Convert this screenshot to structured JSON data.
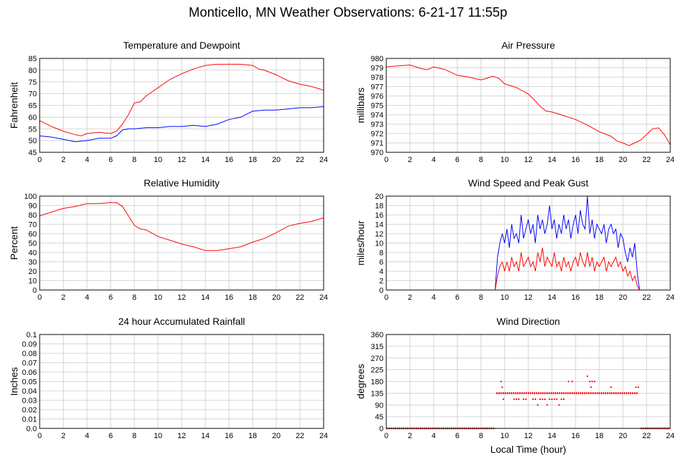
{
  "page": {
    "title": "Monticello, MN Weather Observations: 6-21-17 11:55p"
  },
  "chart_data": [
    {
      "type": "line",
      "title": "Temperature and Dewpoint",
      "xlabel": "",
      "ylabel": "Fahrenheit",
      "xlim": [
        0,
        24
      ],
      "ylim": [
        45,
        85
      ],
      "x_ticks": [
        0,
        2,
        4,
        6,
        8,
        10,
        12,
        14,
        16,
        18,
        20,
        22,
        24
      ],
      "y_ticks": [
        45,
        50,
        55,
        60,
        65,
        70,
        75,
        80,
        85
      ],
      "grid": true,
      "series": [
        {
          "color": "#ff0000",
          "x": [
            0,
            1,
            2,
            3,
            3.5,
            4,
            5,
            6,
            6.5,
            7,
            7.5,
            8,
            8.5,
            9,
            10,
            11,
            12,
            13,
            14,
            15,
            16,
            17,
            18,
            18.5,
            19,
            20,
            21,
            22,
            23,
            24
          ],
          "y": [
            58.5,
            56,
            54,
            52.5,
            52,
            53,
            53.5,
            53,
            54,
            57,
            61,
            66,
            66.5,
            69,
            72.5,
            76,
            78.5,
            80.5,
            82,
            82.5,
            82.5,
            82.5,
            82,
            80.5,
            80,
            78,
            75.5,
            74,
            73,
            71.5
          ]
        },
        {
          "color": "#0000ff",
          "x": [
            0,
            1,
            2,
            3,
            4,
            5,
            6,
            6.5,
            7,
            7.5,
            8,
            9,
            10,
            11,
            12,
            13,
            14,
            15,
            16,
            17,
            18,
            19,
            20,
            21,
            22,
            23,
            24
          ],
          "y": [
            52,
            51.5,
            50.5,
            49.5,
            50,
            51,
            51,
            52,
            54.5,
            55,
            55,
            55.5,
            55.5,
            56,
            56,
            56.5,
            56,
            57,
            59,
            60,
            62.5,
            63,
            63,
            63.5,
            64,
            64,
            64.5
          ]
        }
      ]
    },
    {
      "type": "line",
      "title": "Air Pressure",
      "xlabel": "",
      "ylabel": "millibars",
      "xlim": [
        0,
        24
      ],
      "ylim": [
        970,
        980
      ],
      "x_ticks": [
        0,
        2,
        4,
        6,
        8,
        10,
        12,
        14,
        16,
        18,
        20,
        22,
        24
      ],
      "y_ticks": [
        970,
        971,
        972,
        973,
        974,
        975,
        976,
        977,
        978,
        979,
        980
      ],
      "grid": true,
      "series": [
        {
          "color": "#ff0000",
          "x": [
            0,
            1,
            2,
            3,
            3.5,
            4,
            5,
            6,
            7,
            8,
            8.5,
            9,
            9.5,
            10,
            11,
            12,
            12.5,
            13,
            13.5,
            14,
            15,
            16,
            17,
            18,
            19,
            19.5,
            20,
            20.5,
            21,
            21.5,
            22,
            22.5,
            23,
            23.5,
            24
          ],
          "y": [
            979.1,
            979.2,
            979.3,
            978.9,
            978.8,
            979.1,
            978.8,
            978.2,
            978.0,
            977.7,
            977.9,
            978.1,
            977.9,
            977.3,
            976.9,
            976.2,
            975.6,
            974.9,
            974.4,
            974.3,
            973.9,
            973.5,
            972.9,
            972.2,
            971.7,
            971.2,
            971.0,
            970.7,
            971.0,
            971.3,
            971.9,
            972.5,
            972.6,
            971.9,
            970.8
          ]
        }
      ]
    },
    {
      "type": "line",
      "title": "Relative Humidity",
      "xlabel": "",
      "ylabel": "Percent",
      "xlim": [
        0,
        24
      ],
      "ylim": [
        0,
        100
      ],
      "x_ticks": [
        0,
        2,
        4,
        6,
        8,
        10,
        12,
        14,
        16,
        18,
        20,
        22,
        24
      ],
      "y_ticks": [
        0,
        10,
        20,
        30,
        40,
        50,
        60,
        70,
        80,
        90,
        100
      ],
      "grid": true,
      "series": [
        {
          "color": "#ff0000",
          "x": [
            0,
            1,
            2,
            3,
            4,
            5,
            6,
            6.5,
            7,
            7.5,
            8,
            8.5,
            9,
            10,
            11,
            12,
            13,
            14,
            15,
            16,
            17,
            18,
            19,
            20,
            21,
            22,
            23,
            24
          ],
          "y": [
            79,
            83,
            87,
            89,
            92,
            92,
            93,
            93,
            89,
            79,
            69,
            65,
            64,
            57,
            53,
            49,
            46,
            42,
            42,
            44,
            46,
            51,
            55,
            61,
            68,
            71,
            73,
            77
          ]
        }
      ]
    },
    {
      "type": "line",
      "title": "Wind Speed and Peak Gust",
      "xlabel": "",
      "ylabel": "miles/hour",
      "xlim": [
        0,
        24
      ],
      "ylim": [
        0,
        20
      ],
      "x_ticks": [
        0,
        2,
        4,
        6,
        8,
        10,
        12,
        14,
        16,
        18,
        20,
        22,
        24
      ],
      "y_ticks": [
        0,
        2,
        4,
        6,
        8,
        10,
        12,
        14,
        16,
        18,
        20
      ],
      "grid": true,
      "series": [
        {
          "color": "#0000ff",
          "x": [
            0,
            9.2,
            9.4,
            9.6,
            9.8,
            10,
            10.2,
            10.4,
            10.6,
            10.8,
            11,
            11.2,
            11.4,
            11.6,
            11.8,
            12,
            12.2,
            12.4,
            12.6,
            12.8,
            13,
            13.2,
            13.4,
            13.6,
            13.8,
            14,
            14.2,
            14.4,
            14.6,
            14.8,
            15,
            15.2,
            15.4,
            15.6,
            15.8,
            16,
            16.2,
            16.4,
            16.6,
            16.8,
            17,
            17.2,
            17.4,
            17.6,
            17.8,
            18,
            18.2,
            18.4,
            18.6,
            18.8,
            19,
            19.2,
            19.4,
            19.6,
            19.8,
            20,
            20.2,
            20.4,
            20.6,
            20.8,
            21,
            21.2,
            21.4,
            24
          ],
          "y": [
            0,
            0,
            7,
            10,
            12,
            10,
            13,
            9,
            14,
            11,
            12,
            10,
            16,
            11,
            13,
            15,
            12,
            14,
            10,
            16,
            13,
            15,
            12,
            14,
            18,
            13,
            15,
            11,
            14,
            12,
            16,
            13,
            15,
            11,
            14,
            16,
            12,
            17,
            14,
            13,
            20,
            12,
            15,
            11,
            14,
            13,
            12,
            14,
            10,
            13,
            14,
            12,
            13,
            9,
            12,
            11,
            8,
            6,
            9,
            7,
            10,
            4,
            0,
            0
          ]
        },
        {
          "color": "#ff0000",
          "x": [
            0,
            9.2,
            9.4,
            9.6,
            9.8,
            10,
            10.2,
            10.4,
            10.6,
            10.8,
            11,
            11.2,
            11.4,
            11.6,
            11.8,
            12,
            12.2,
            12.4,
            12.6,
            12.8,
            13,
            13.2,
            13.4,
            13.6,
            13.8,
            14,
            14.2,
            14.4,
            14.6,
            14.8,
            15,
            15.2,
            15.4,
            15.6,
            15.8,
            16,
            16.2,
            16.4,
            16.6,
            16.8,
            17,
            17.2,
            17.4,
            17.6,
            17.8,
            18,
            18.2,
            18.4,
            18.6,
            18.8,
            19,
            19.2,
            19.4,
            19.6,
            19.8,
            20,
            20.2,
            20.4,
            20.6,
            20.8,
            21,
            21.2,
            21.4,
            24
          ],
          "y": [
            0,
            0,
            3,
            5,
            6,
            4,
            6,
            4,
            7,
            5,
            6,
            4,
            8,
            5,
            6,
            7,
            5,
            6,
            4,
            8,
            6,
            9,
            5,
            7,
            6,
            5,
            8,
            5,
            6,
            4,
            7,
            5,
            6,
            4,
            6,
            7,
            5,
            8,
            6,
            5,
            8,
            5,
            7,
            4,
            6,
            5,
            6,
            7,
            4,
            6,
            5,
            6,
            7,
            5,
            6,
            4,
            5,
            3,
            4,
            2,
            3,
            1,
            0,
            0
          ]
        }
      ]
    },
    {
      "type": "line",
      "title": "24 hour Accumulated Rainfall",
      "xlabel": "",
      "ylabel": "Inches",
      "xlim": [
        0,
        24
      ],
      "ylim": [
        0,
        0.1
      ],
      "x_ticks": [
        0,
        2,
        4,
        6,
        8,
        10,
        12,
        14,
        16,
        18,
        20,
        22,
        24
      ],
      "y_ticks": [
        "0.0",
        "0.01",
        "0.02",
        "0.03",
        "0.04",
        "0.05",
        "0.06",
        "0.07",
        "0.08",
        "0.09",
        "0.1"
      ],
      "grid": true,
      "series": [
        {
          "color": "#ff0000",
          "x": [
            0,
            24
          ],
          "y": [
            0,
            0
          ]
        }
      ]
    },
    {
      "type": "scatter",
      "title": "Wind Direction",
      "xlabel": "Local Time (hour)",
      "ylabel": "degrees",
      "xlim": [
        0,
        24
      ],
      "ylim": [
        0,
        360
      ],
      "x_ticks": [
        0,
        2,
        4,
        6,
        8,
        10,
        12,
        14,
        16,
        18,
        20,
        22,
        24
      ],
      "y_ticks": [
        0,
        45,
        90,
        135,
        180,
        225,
        270,
        315,
        360
      ],
      "grid": true,
      "series": [
        {
          "color": "#ff0000",
          "segments": [
            {
              "x_start": 0,
              "x_end": 9.2,
              "y": 0
            },
            {
              "x_start": 9.3,
              "x_end": 21.3,
              "y": 135
            },
            {
              "x_start": 21.5,
              "x_end": 24,
              "y": 0
            }
          ],
          "points": [
            [
              9.7,
              180
            ],
            [
              9.8,
              158
            ],
            [
              9.9,
              112
            ],
            [
              10.8,
              112
            ],
            [
              11.0,
              112
            ],
            [
              11.2,
              112
            ],
            [
              11.6,
              112
            ],
            [
              11.8,
              112
            ],
            [
              12.4,
              112
            ],
            [
              12.6,
              112
            ],
            [
              12.8,
              90
            ],
            [
              13.0,
              112
            ],
            [
              13.2,
              112
            ],
            [
              13.4,
              112
            ],
            [
              13.6,
              90
            ],
            [
              13.8,
              112
            ],
            [
              14.0,
              112
            ],
            [
              14.2,
              112
            ],
            [
              14.4,
              112
            ],
            [
              14.6,
              90
            ],
            [
              14.8,
              112
            ],
            [
              15.0,
              112
            ],
            [
              15.4,
              180
            ],
            [
              15.7,
              180
            ],
            [
              17.0,
              200
            ],
            [
              17.2,
              180
            ],
            [
              17.3,
              158
            ],
            [
              17.4,
              180
            ],
            [
              17.6,
              180
            ],
            [
              19.0,
              158
            ],
            [
              21.1,
              158
            ],
            [
              21.3,
              158
            ]
          ]
        }
      ]
    }
  ]
}
